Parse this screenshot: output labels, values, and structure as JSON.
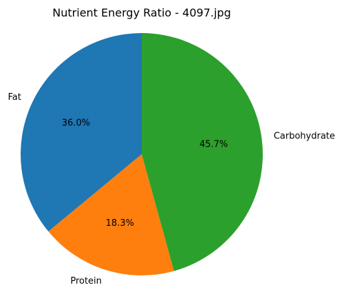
{
  "chart_data": {
    "type": "pie",
    "title": "Nutrient Energy Ratio - 4097.jpg",
    "slices": [
      {
        "label": "Fat",
        "value": 36.0,
        "pct_label": "36.0%",
        "color": "#1f77b4"
      },
      {
        "label": "Protein",
        "value": 18.3,
        "pct_label": "18.3%",
        "color": "#ff7f0e"
      },
      {
        "label": "Carbohydrate",
        "value": 45.7,
        "pct_label": "45.7%",
        "color": "#2ca02c"
      }
    ],
    "start_angle": 90,
    "direction": "counterclockwise"
  }
}
